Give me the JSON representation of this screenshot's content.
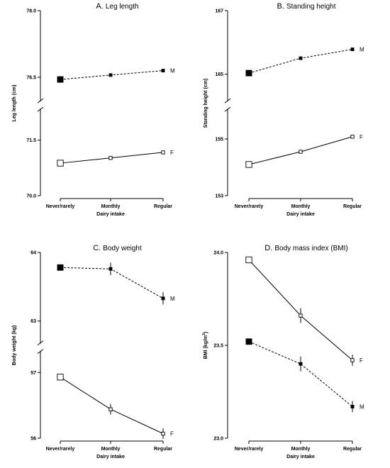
{
  "chart_data": [
    {
      "type": "line",
      "panel_letter": "A.",
      "title": "Leg length",
      "xlabel": "Dairy intake",
      "ylabel": "Leg length (cm)",
      "categories": [
        "Never/rarely",
        "Monthly",
        "Regular"
      ],
      "upper_range": [
        76.0,
        78.0
      ],
      "lower_range": [
        70.0,
        72.3
      ],
      "upper_ticks": [
        "78.0",
        "76.5"
      ],
      "lower_ticks": [
        "71.5",
        "70.0"
      ],
      "upper_tick_values": [
        78.0,
        76.5
      ],
      "lower_tick_values": [
        71.5,
        70.0
      ],
      "series": [
        {
          "name": "M",
          "values": [
            76.45,
            76.55,
            76.65
          ],
          "errors": [
            0.02,
            0.02,
            0.02
          ],
          "style": "dashed",
          "fill": "#000000",
          "segment": "upper",
          "marker_scale": [
            1.9,
            1.0,
            1.0
          ]
        },
        {
          "name": "F",
          "values": [
            70.88,
            71.02,
            71.17
          ],
          "errors": [
            0.02,
            0.02,
            0.02
          ],
          "style": "solid",
          "fill": "#ffffff",
          "segment": "lower",
          "marker_scale": [
            1.9,
            1.0,
            1.0
          ]
        }
      ]
    },
    {
      "type": "line",
      "panel_letter": "B.",
      "title": "Standing height",
      "xlabel": "Dairy intake",
      "ylabel": "Standing height (cm)",
      "categories": [
        "Never/rarely",
        "Monthly",
        "Regular"
      ],
      "upper_range": [
        164.2,
        167.0
      ],
      "lower_range": [
        153.0,
        156.0
      ],
      "upper_ticks": [
        "167",
        "165"
      ],
      "lower_ticks": [
        "155",
        "153"
      ],
      "upper_tick_values": [
        167,
        165
      ],
      "lower_tick_values": [
        155,
        153
      ],
      "series": [
        {
          "name": "M",
          "values": [
            165.03,
            165.5,
            165.78
          ],
          "errors": [
            0.05,
            0.05,
            0.05
          ],
          "style": "dashed",
          "fill": "#000000",
          "segment": "upper",
          "marker_scale": [
            1.9,
            1.0,
            1.0
          ]
        },
        {
          "name": "F",
          "values": [
            154.1,
            154.55,
            155.08
          ],
          "errors": [
            0.05,
            0.05,
            0.05
          ],
          "style": "solid",
          "fill": "#ffffff",
          "segment": "lower",
          "marker_scale": [
            1.9,
            1.0,
            1.0
          ]
        }
      ]
    },
    {
      "type": "line",
      "panel_letter": "C.",
      "title": "Body weight",
      "xlabel": "Dairy intake",
      "ylabel": "Body weight (kg)",
      "categories": [
        "Never/rarely",
        "Monthly",
        "Regular"
      ],
      "upper_range": [
        62.7,
        64.0
      ],
      "lower_range": [
        56.0,
        57.3
      ],
      "upper_ticks": [
        "64",
        "63"
      ],
      "lower_ticks": [
        "57",
        "56"
      ],
      "upper_tick_values": [
        64,
        63
      ],
      "lower_tick_values": [
        57,
        56
      ],
      "series": [
        {
          "name": "M",
          "values": [
            63.78,
            63.76,
            63.33
          ],
          "errors": [
            0.04,
            0.09,
            0.09
          ],
          "style": "dashed",
          "fill": "#000000",
          "segment": "upper",
          "marker_scale": [
            1.9,
            1.0,
            1.0
          ]
        },
        {
          "name": "F",
          "values": [
            56.93,
            56.44,
            56.07
          ],
          "errors": [
            0.03,
            0.08,
            0.08
          ],
          "style": "solid",
          "fill": "#ffffff",
          "segment": "lower",
          "marker_scale": [
            1.9,
            1.0,
            1.0
          ]
        }
      ]
    },
    {
      "type": "line",
      "panel_letter": "D.",
      "title": "Body mass index (BMI)",
      "xlabel": "Dairy intake",
      "ylabel": "BMI (kg/m",
      "ylabel_sup": "2",
      "ylabel_tail": ")",
      "categories": [
        "Never/rarely",
        "Monthly",
        "Regular"
      ],
      "full_range": [
        23.0,
        24.0
      ],
      "upper_ticks": [
        "24.0",
        "23.5",
        "23.0"
      ],
      "upper_tick_values": [
        24.0,
        23.5,
        23.0
      ],
      "series": [
        {
          "name": "F",
          "values": [
            23.96,
            23.66,
            23.42
          ],
          "errors": [
            0.01,
            0.04,
            0.03
          ],
          "style": "solid",
          "fill": "#ffffff",
          "marker_scale": [
            1.9,
            1.0,
            1.0
          ]
        },
        {
          "name": "M",
          "values": [
            23.52,
            23.4,
            23.17
          ],
          "errors": [
            0.01,
            0.04,
            0.03
          ],
          "style": "dashed",
          "fill": "#000000",
          "marker_scale": [
            1.9,
            1.0,
            1.0
          ]
        }
      ]
    }
  ]
}
